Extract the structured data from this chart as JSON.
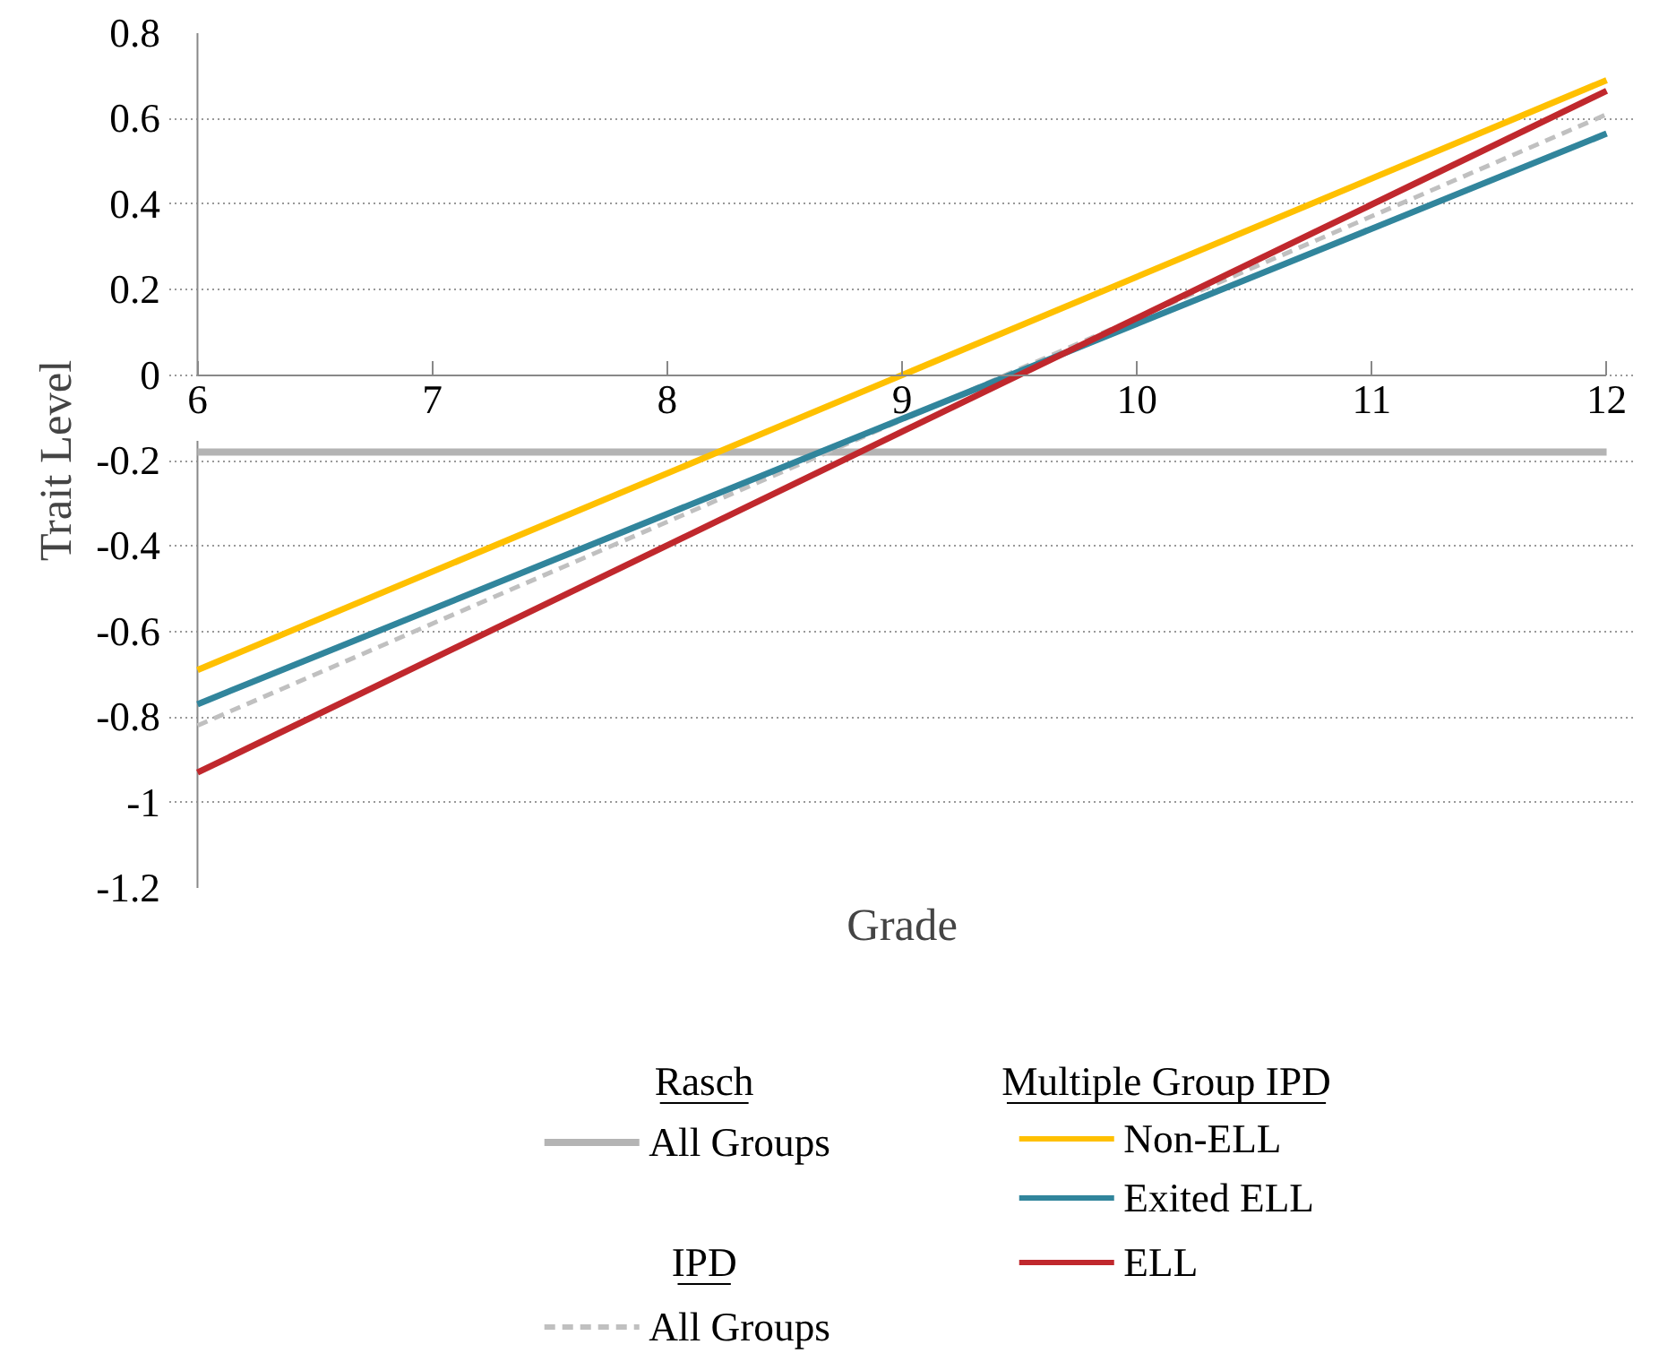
{
  "chart_data": {
    "type": "line",
    "xlabel": "Grade",
    "ylabel": "Trait Level",
    "x": [
      6,
      12
    ],
    "xlim": [
      6,
      12
    ],
    "xticks": [
      6,
      7,
      8,
      9,
      10,
      11,
      12
    ],
    "ylim": [
      -1.2,
      0.8
    ],
    "yticks": [
      -1.2,
      -1,
      -0.8,
      -0.6,
      -0.4,
      -0.2,
      0,
      0.2,
      0.4,
      0.6,
      0.8
    ],
    "grid": "y",
    "legend": "bottom",
    "annotations": [
      "Rasch",
      "IPD",
      "Multiple Group IPD"
    ],
    "series": [
      {
        "name": "All Groups",
        "color": "#b4b4b4",
        "values": [
          -0.18,
          -0.18
        ],
        "line_style": "solid"
      },
      {
        "name": "All Groups",
        "color": "#c0c0c0",
        "values": [
          -0.82,
          0.61
        ],
        "line_style": "dashed"
      },
      {
        "name": "Non-ELL",
        "color": "#ffc000",
        "values": [
          -0.69,
          0.69
        ],
        "line_style": "solid"
      },
      {
        "name": "Exited ELL",
        "color": "#31859c",
        "values": [
          -0.77,
          0.565
        ],
        "line_style": "solid"
      },
      {
        "name": "ELL",
        "color": "#c0282d",
        "values": [
          -0.93,
          0.665
        ],
        "line_style": "solid"
      }
    ]
  }
}
